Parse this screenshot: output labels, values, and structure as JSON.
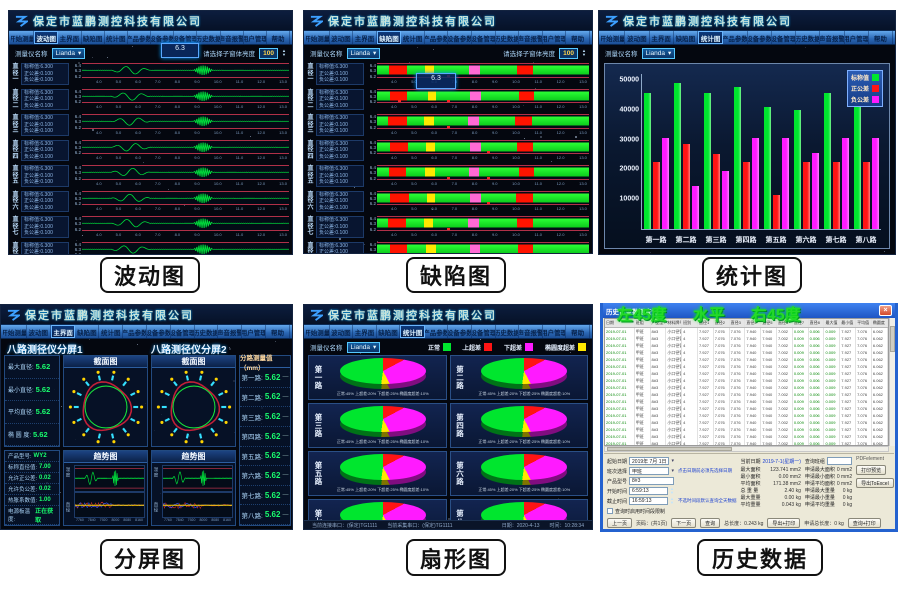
{
  "page": {
    "background": "#ffffff",
    "captions": [
      {
        "text": "波动图"
      },
      {
        "text": "缺陷图"
      },
      {
        "text": "统计图"
      },
      {
        "text": "分屏图"
      },
      {
        "text": "扇形图"
      },
      {
        "text": "历史数据"
      }
    ]
  },
  "common": {
    "window_title": "保定市蓝鹏测控科技有限公司",
    "menu": [
      "开始测量",
      "波动图",
      "主界面",
      "缺陷图",
      "统计图",
      "产品参数",
      "设备参数",
      "设备管理",
      "历史数据",
      "声音报警",
      "用户管理",
      "帮助"
    ],
    "device_label": "测量仪名称",
    "device_value": "Lianda",
    "dropdown_arrow": "▾",
    "brightness_label": "请选择子窗体亮度",
    "brightness_value": "100"
  },
  "wave_panel": {
    "active_menu": "波动图",
    "tooltip": "6.3",
    "y_ticks": [
      "6.4",
      "6.3",
      "6.2"
    ],
    "x_ticks": [
      "4.0",
      "5.0",
      "6.0",
      "7.0",
      "8.0",
      "9.0",
      "10.0",
      "11.0",
      "12.0",
      "13.0"
    ],
    "row_info": {
      "nominal": "标称值:6.300",
      "plus": "正公差:0.100",
      "minus": "负公差:0.100"
    },
    "rows": [
      "直径一",
      "直径二",
      "直径三",
      "直径四",
      "直径五",
      "直径六",
      "直径七",
      "直径八"
    ]
  },
  "defect_panel": {
    "active_menu": "缺陷图",
    "tooltip": "6.3",
    "y_ticks": [
      "6.4",
      "6.3",
      "6.2"
    ],
    "x_ticks": [
      "4.0",
      "5.0",
      "6.0",
      "7.0",
      "8.0",
      "9.0",
      "10.0",
      "11.0",
      "12.0",
      "13.0"
    ],
    "row_info": {
      "nominal": "标称值:6.300",
      "plus": "正公差:0.100",
      "minus": "负公差:0.100"
    },
    "rows": [
      "直径一",
      "直径二",
      "直径三",
      "直径四",
      "直径五",
      "直径六",
      "直径七",
      "直径八"
    ],
    "segments": [
      [
        {
          "x": 0.055,
          "w": 0.085,
          "c": "#ff1400"
        },
        {
          "x": 0.225,
          "w": 0.045,
          "c": "#ffe800"
        },
        {
          "x": 0.435,
          "w": 0.05,
          "c": "#ff6ad4"
        },
        {
          "x": 0.66,
          "w": 0.075,
          "c": "#ff1400"
        }
      ],
      [
        {
          "x": 0.06,
          "w": 0.08,
          "c": "#ff1400"
        },
        {
          "x": 0.24,
          "w": 0.04,
          "c": "#ffe800"
        },
        {
          "x": 0.44,
          "w": 0.05,
          "c": "#ff6ad4"
        },
        {
          "x": 0.67,
          "w": 0.07,
          "c": "#ff1400"
        }
      ],
      [
        {
          "x": 0.05,
          "w": 0.09,
          "c": "#ff1400"
        },
        {
          "x": 0.22,
          "w": 0.05,
          "c": "#ffe800"
        },
        {
          "x": 0.43,
          "w": 0.05,
          "c": "#ff6ad4"
        },
        {
          "x": 0.65,
          "w": 0.08,
          "c": "#ff1400"
        }
      ],
      [
        {
          "x": 0.06,
          "w": 0.085,
          "c": "#ff1400"
        },
        {
          "x": 0.23,
          "w": 0.045,
          "c": "#ffe800"
        },
        {
          "x": 0.44,
          "w": 0.05,
          "c": "#ff6ad4"
        },
        {
          "x": 0.66,
          "w": 0.075,
          "c": "#ff1400"
        }
      ],
      [
        {
          "x": 0.055,
          "w": 0.08,
          "c": "#ff1400"
        },
        {
          "x": 0.225,
          "w": 0.05,
          "c": "#ffe800"
        },
        {
          "x": 0.435,
          "w": 0.045,
          "c": "#ff6ad4"
        },
        {
          "x": 0.67,
          "w": 0.07,
          "c": "#ff1400"
        }
      ],
      [
        {
          "x": 0.06,
          "w": 0.09,
          "c": "#ff1400"
        },
        {
          "x": 0.235,
          "w": 0.04,
          "c": "#ffe800"
        },
        {
          "x": 0.44,
          "w": 0.05,
          "c": "#ff6ad4"
        },
        {
          "x": 0.655,
          "w": 0.08,
          "c": "#ff1400"
        }
      ],
      [
        {
          "x": 0.05,
          "w": 0.085,
          "c": "#ff1400"
        },
        {
          "x": 0.22,
          "w": 0.045,
          "c": "#ffe800"
        },
        {
          "x": 0.43,
          "w": 0.05,
          "c": "#ff6ad4"
        },
        {
          "x": 0.66,
          "w": 0.075,
          "c": "#ff1400"
        }
      ],
      [
        {
          "x": 0.06,
          "w": 0.08,
          "c": "#ff1400"
        },
        {
          "x": 0.23,
          "w": 0.05,
          "c": "#ffe800"
        },
        {
          "x": 0.44,
          "w": 0.045,
          "c": "#ff6ad4"
        },
        {
          "x": 0.665,
          "w": 0.07,
          "c": "#ff1400"
        }
      ]
    ],
    "bottom_marks": [
      [
        0.33
      ],
      [
        0.1,
        0.33
      ],
      [
        0.33
      ],
      [
        0.52
      ],
      [
        0.33,
        0.52
      ],
      [
        0.52
      ],
      [
        0.33
      ],
      [
        0.52
      ]
    ]
  },
  "stats_panel": {
    "active_menu": "统计图",
    "legend": [
      {
        "label": "标称值",
        "color": "#00e62e"
      },
      {
        "label": "正公差",
        "color": "#ff1414"
      },
      {
        "label": "负公差",
        "color": "#ff1aff"
      }
    ]
  },
  "split_panel": {
    "active_menu": "主界面",
    "section1_title": "八路测径仪分屏1",
    "section2_title": "八路测径仪分屏2",
    "section_chart_title": "截面图",
    "trend_title": "趋势图",
    "stats": [
      {
        "label": "最大直径:",
        "value": "5.62"
      },
      {
        "label": "最小直径:",
        "value": "5.62"
      },
      {
        "label": "平均直径:",
        "value": "5.62"
      },
      {
        "label": "椭 圆 度:",
        "value": "5.62"
      }
    ],
    "info": [
      {
        "label": "产品型号:",
        "value": "WY2"
      },
      {
        "label": "标称直径值:",
        "value": "7.00"
      },
      {
        "label": "允许正公差:",
        "value": "0.02"
      },
      {
        "label": "允许负公差:",
        "value": "0.02"
      },
      {
        "label": "热胀系数值:",
        "value": "1.00"
      },
      {
        "label": "电源板温度:",
        "value": "正在获取"
      }
    ],
    "routes_title": "分路测量值（mm）",
    "routes": [
      {
        "label": "第一路:",
        "value": "5.62"
      },
      {
        "label": "第二路:",
        "value": "5.62"
      },
      {
        "label": "第三路:",
        "value": "5.62"
      },
      {
        "label": "第四路:",
        "value": "5.62"
      },
      {
        "label": "第五路:",
        "value": "5.62"
      },
      {
        "label": "第六路:",
        "value": "5.62"
      },
      {
        "label": "第七路:",
        "value": "5.62"
      },
      {
        "label": "第八路:",
        "value": "5.62"
      }
    ],
    "trend_axis_top": "温度",
    "trend_axis_bottom": "直径",
    "trend_xticks": [
      "7760",
      "7840",
      "7920",
      "8000",
      "8080",
      "8160"
    ]
  },
  "pie_panel": {
    "active_menu": "统计图",
    "legend": [
      {
        "label": "正常",
        "color": "#00e62e"
      },
      {
        "label": "上超差",
        "color": "#ff1414"
      },
      {
        "label": "下超差",
        "color": "#ff1aff"
      },
      {
        "label": "椭圆度超差",
        "color": "#ffe800"
      }
    ],
    "routes": [
      "第一路",
      "第二路",
      "第三路",
      "第四路",
      "第五路",
      "第六路",
      "第七路",
      "第八路"
    ],
    "caption": "正常:45%  上超差:20%  下超差:25%  椭圆度超差:10%",
    "status": [
      {
        "text": "当前连接串口：(保定)TG1111"
      },
      {
        "text": "当前采集串口：(保定)TG1111"
      },
      {
        "text": "日期：2020-4-13"
      },
      {
        "text": "时间：10:28:34"
      }
    ]
  },
  "history_panel": {
    "window_title": "历史记录数据查询",
    "close_label": "×",
    "overlay": [
      "左45度",
      "水平",
      "右45度"
    ],
    "table": {
      "headers": [
        "日期",
        "班组",
        "产品型号",
        "材料牌号",
        "班别",
        "直径1",
        "直径2",
        "直径3",
        "直径4",
        "直径5",
        "直径6",
        "直径7",
        "直径8",
        "最大值",
        "最小值",
        "平均值",
        "椭圆度"
      ],
      "row": [
        "2019-07-01",
        "甲班",
        "8#3",
        "小口径管",
        "4",
        "7.927",
        "7.076",
        "7.076",
        "7.940",
        "7.940",
        "7.002",
        "0.009",
        "0.006",
        "0.009",
        "7.927",
        "7.076",
        "6.062"
      ],
      "row_count": 18,
      "green_cols": [
        0,
        11,
        12,
        13
      ]
    },
    "form": {
      "fields": [
        {
          "label": "起始日期",
          "value": "2019年 7月 1日"
        },
        {
          "label": "班次选择",
          "value": "甲班"
        },
        {
          "label": "产品型号",
          "value": "8#3"
        },
        {
          "label": "开始时间",
          "value": "6:59:13"
        },
        {
          "label": "截止时间",
          "value": "16:59:13"
        }
      ],
      "hints": [
        "点击日期前必须先选择日期",
        "不选时间段默认查询全天数据"
      ],
      "checkbox_label": "查询时启用时间段限制",
      "mid_title": {
        "label": "当前日期",
        "value": "2019-7-1(星期一)"
      },
      "mid_stats": [
        {
          "label": "最大面积",
          "value": "123.741 mm2"
        },
        {
          "label": "最小面积",
          "value": "0.00 mm2"
        },
        {
          "label": "平均面积",
          "value": "171.38 mm2"
        },
        {
          "label": "总 重 量",
          "value": "2.40 kg"
        },
        {
          "label": "最大重量",
          "value": "0.00 kg"
        },
        {
          "label": "平均重量",
          "value": "0.043 kg"
        }
      ],
      "query_box_label": "查询班组",
      "right_stats": [
        {
          "label": "申请最大面积",
          "value": "0 mm2"
        },
        {
          "label": "申请最小面积",
          "value": "0 mm2"
        },
        {
          "label": "申请平均面积",
          "value": "0 mm2"
        },
        {
          "label": "申请最大重量",
          "value": "0 kg"
        },
        {
          "label": "申请最小重量",
          "value": "0 kg"
        },
        {
          "label": "申请平均重量",
          "value": "0 kg"
        }
      ],
      "printer_label": "PDFelement",
      "buttons": {
        "prev": "上一页",
        "page_info": "页码：(共1页)",
        "next": "下一页",
        "query": "查询",
        "total_len": "总长度：0.243 kg",
        "export_print": "导出+打印",
        "apply_len": "申请总长度：0 kg",
        "query_print": "查询+打印",
        "preview": "打印预览",
        "excel": "导出ToExcel"
      }
    }
  },
  "chart_data": [
    {
      "type": "bar",
      "title": "统计图",
      "categories": [
        "第一路",
        "第二路",
        "第三路",
        "第四路",
        "第五路",
        "第六路",
        "第七路",
        "第八路"
      ],
      "series": [
        {
          "name": "标称值",
          "color": "#00e62e",
          "values": [
            45500,
            49000,
            45500,
            47500,
            41000,
            40000,
            45500,
            45500
          ]
        },
        {
          "name": "正公差",
          "color": "#ff1414",
          "values": [
            22500,
            28500,
            25000,
            22500,
            11500,
            22500,
            22500,
            22500
          ]
        },
        {
          "name": "负公差",
          "color": "#ff1aff",
          "values": [
            30500,
            14500,
            19500,
            30500,
            30500,
            25500,
            30500,
            30500
          ]
        }
      ],
      "ylim": [
        0,
        52000
      ],
      "yticks": [
        10000,
        20000,
        30000,
        40000,
        50000
      ],
      "legend_position": "top-right",
      "grid": false
    },
    {
      "type": "pie",
      "title": "扇形图（第一路～第八路，每路相同）",
      "slices": [
        {
          "label": "上超差",
          "pct": 20,
          "color": "#ff1414"
        },
        {
          "label": "下超差",
          "pct": 25,
          "color": "#ff1aff"
        },
        {
          "label": "椭圆度超差",
          "pct": 10,
          "color": "#ffe800"
        },
        {
          "label": "正常",
          "pct": 45,
          "color": "#00e62e"
        }
      ]
    }
  ]
}
